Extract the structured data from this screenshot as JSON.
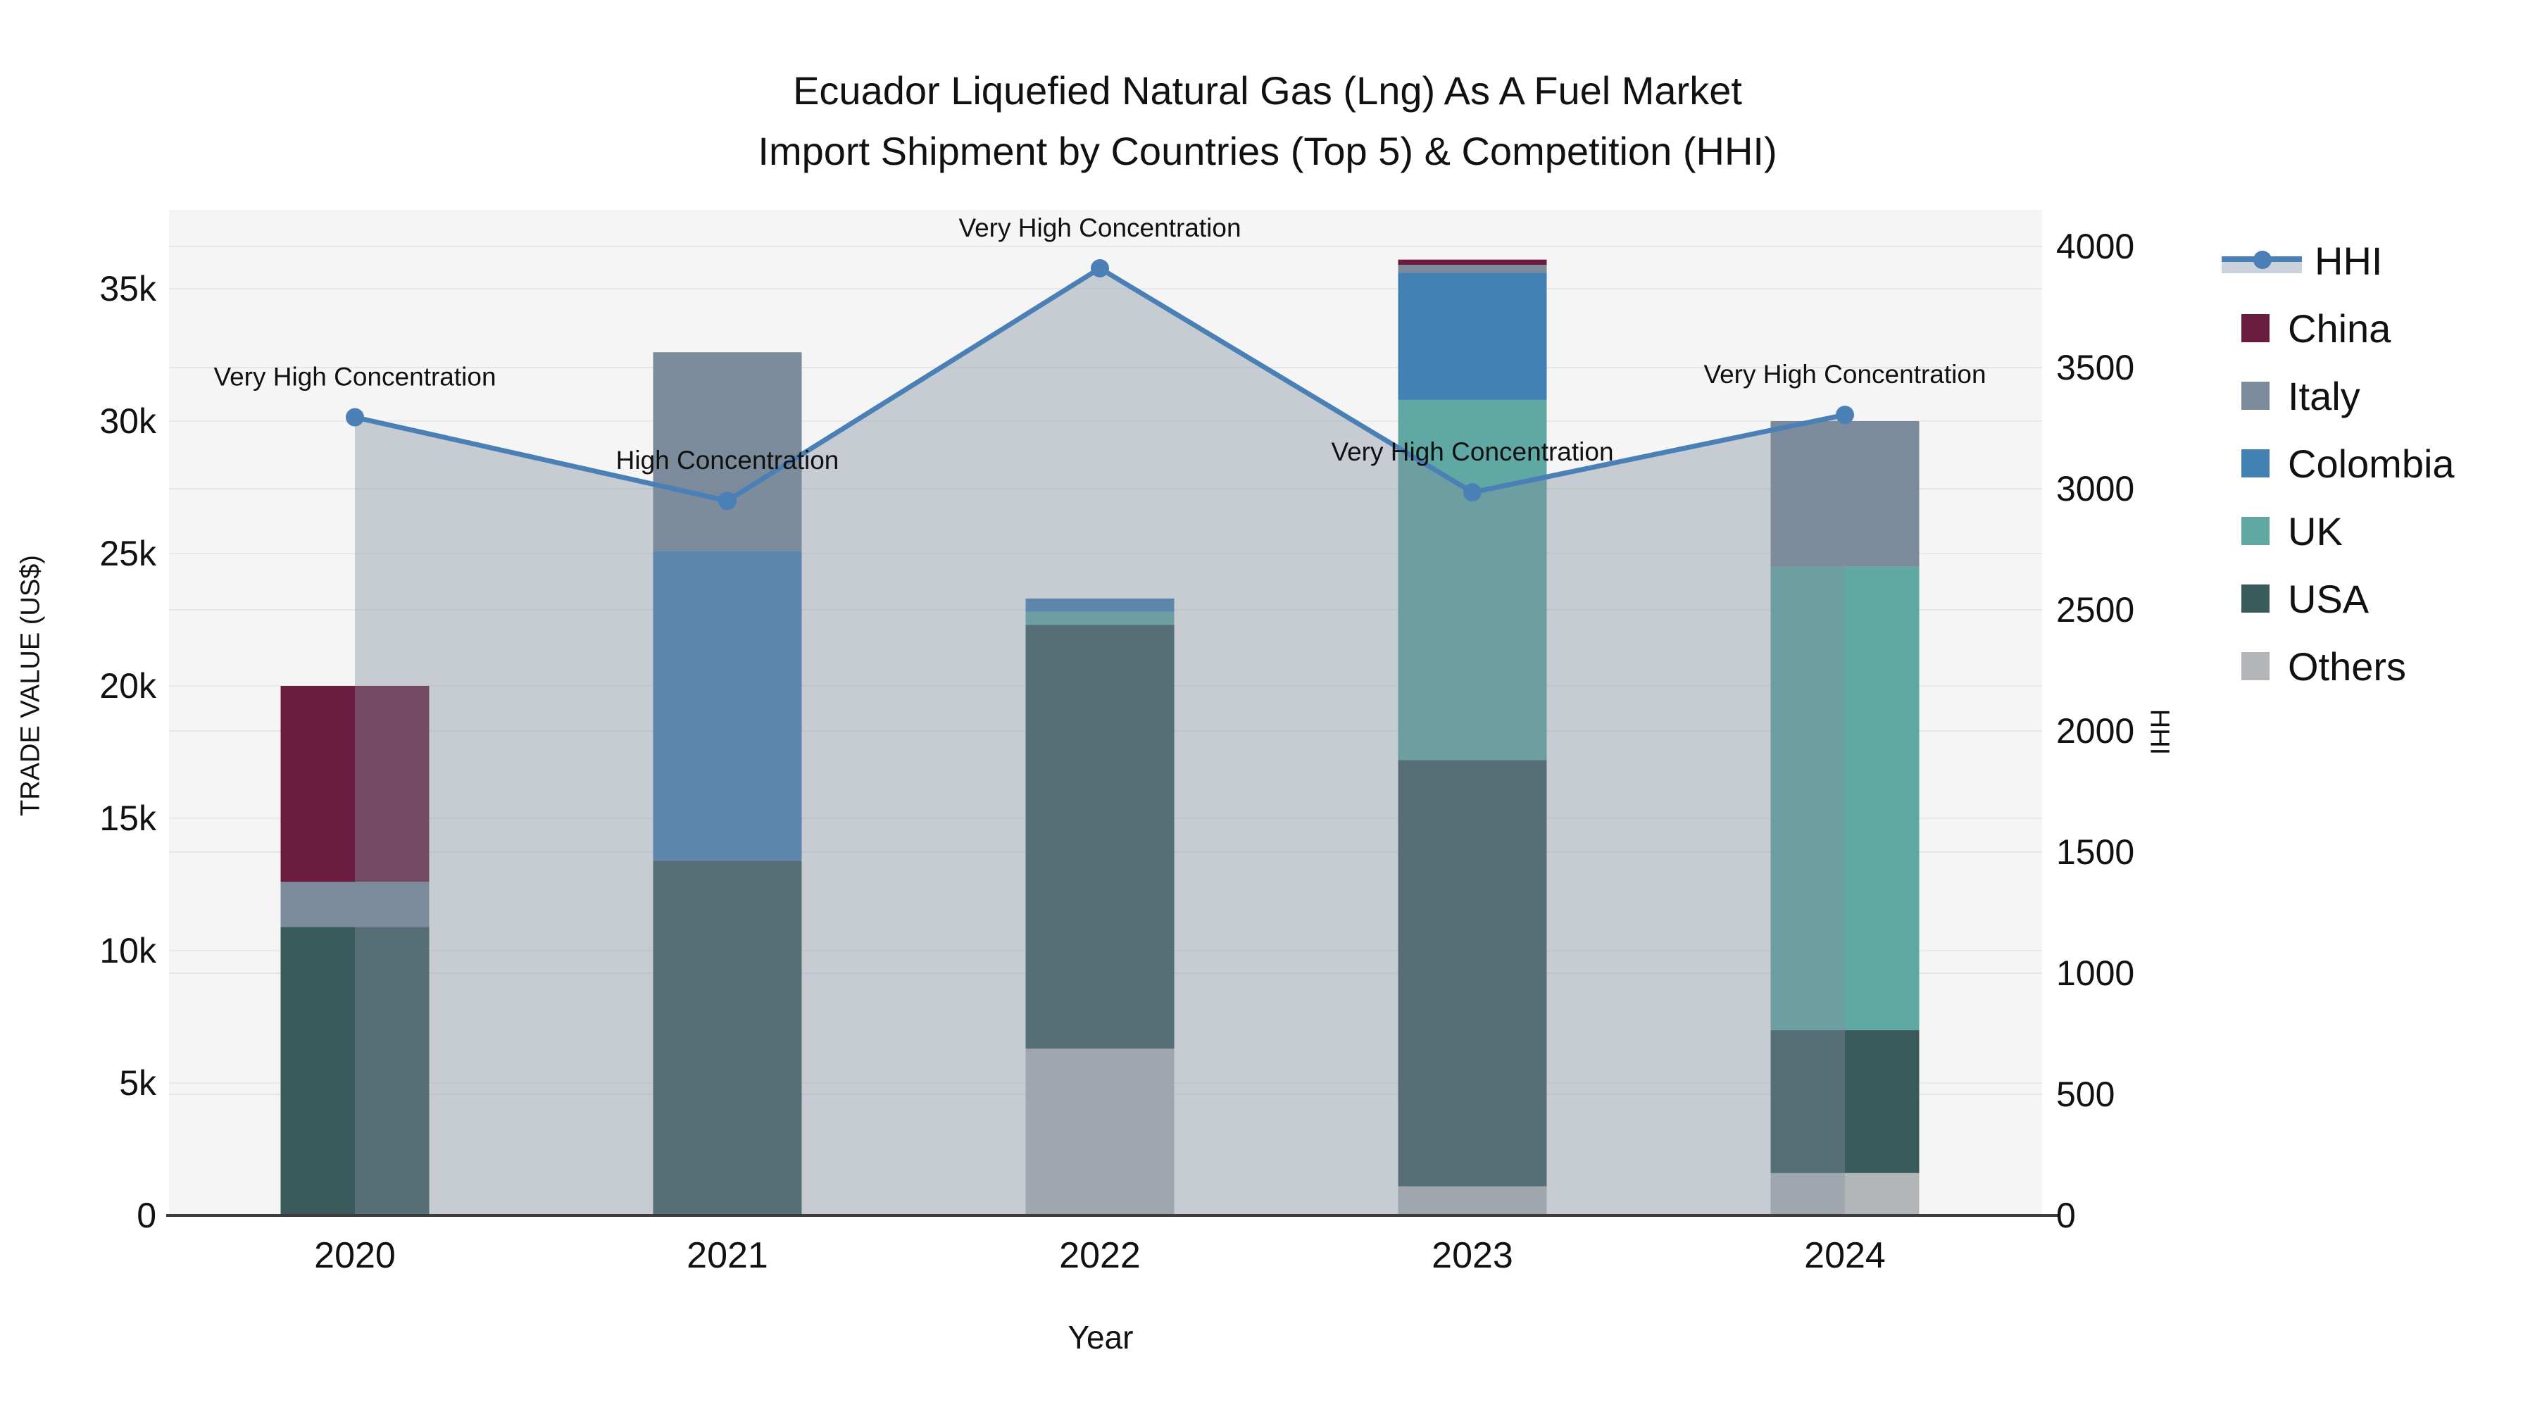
{
  "title": {
    "line1": "Ecuador Liquefied Natural Gas (Lng) As A Fuel Market",
    "line2": "Import Shipment by Countries (Top 5) & Competition (HHI)"
  },
  "axes": {
    "y_left_title": "TRADE VALUE (US$)",
    "y_right_title": "HHI",
    "x_title": "Year",
    "y_left_tick_labels": [
      "0",
      "5k",
      "10k",
      "15k",
      "20k",
      "25k",
      "30k",
      "35k"
    ],
    "y_right_tick_labels": [
      "0",
      "500",
      "1000",
      "1500",
      "2000",
      "2500",
      "3000",
      "3500",
      "4000"
    ]
  },
  "legend": {
    "items": [
      {
        "label": "HHI",
        "type": "line",
        "color": "#4a80b5"
      },
      {
        "label": "China",
        "type": "box",
        "color": "#6b1d3f"
      },
      {
        "label": "Italy",
        "type": "box",
        "color": "#7b8b9b"
      },
      {
        "label": "Colombia",
        "type": "box",
        "color": "#4381b4"
      },
      {
        "label": "UK",
        "type": "box",
        "color": "#5fa8a4"
      },
      {
        "label": "USA",
        "type": "box",
        "color": "#3a5a5c"
      },
      {
        "label": "Others",
        "type": "box",
        "color": "#b3b6b8"
      }
    ]
  },
  "chart_data": {
    "type": "bar",
    "subtype": "stacked-bars-with-line-overlay",
    "title": "Ecuador Liquefied Natural Gas (Lng) As A Fuel Market Import Shipment by Countries (Top 5) & Competition (HHI)",
    "xlabel": "Year",
    "ylabel_left": "TRADE VALUE (US$)",
    "ylabel_right": "HHI",
    "categories": [
      "2020",
      "2021",
      "2022",
      "2023",
      "2024"
    ],
    "stack_order_bottom_to_top": [
      "Others",
      "USA",
      "UK",
      "Colombia",
      "Italy",
      "China"
    ],
    "series": [
      {
        "name": "China",
        "color": "#6b1d3f",
        "values": [
          7400,
          0,
          0,
          200,
          0
        ]
      },
      {
        "name": "Italy",
        "color": "#7b8b9b",
        "values": [
          1700,
          7500,
          0,
          300,
          5500
        ]
      },
      {
        "name": "Colombia",
        "color": "#4381b4",
        "values": [
          0,
          11700,
          500,
          4800,
          0
        ]
      },
      {
        "name": "UK",
        "color": "#5fa8a4",
        "values": [
          0,
          0,
          500,
          13600,
          17500
        ]
      },
      {
        "name": "USA",
        "color": "#3a5a5c",
        "values": [
          10900,
          13400,
          16000,
          16100,
          5400
        ]
      },
      {
        "name": "Others",
        "color": "#b3b6b8",
        "values": [
          0,
          0,
          6300,
          1100,
          1600
        ]
      }
    ],
    "bar_totals": [
      20000,
      32600,
      23300,
      36100,
      30000
    ],
    "hhi_line": {
      "name": "HHI",
      "color": "#4a80b5",
      "fill_color_rgba": "rgba(130,142,160,0.40)",
      "values": [
        3295,
        2950,
        3910,
        2985,
        3305
      ]
    },
    "annotations": [
      {
        "year": "2020",
        "text": "Very High Concentration"
      },
      {
        "year": "2021",
        "text": "High Concentration"
      },
      {
        "year": "2022",
        "text": "Very High Concentration"
      },
      {
        "year": "2023",
        "text": "Very High Concentration"
      },
      {
        "year": "2024",
        "text": "Very High Concentration"
      }
    ],
    "y_left_axis": {
      "min": 0,
      "max": 35000,
      "tick_step": 5000,
      "tick_labels": [
        "0",
        "5k",
        "10k",
        "15k",
        "20k",
        "25k",
        "30k",
        "35k"
      ]
    },
    "y_right_axis": {
      "min": 0,
      "max": 4000,
      "tick_step": 500,
      "tick_labels": [
        "0",
        "500",
        "1000",
        "1500",
        "2000",
        "2500",
        "3000",
        "3500",
        "4000"
      ]
    },
    "grid": true,
    "legend_position": "right",
    "plot_background": "#f5f5f5"
  }
}
